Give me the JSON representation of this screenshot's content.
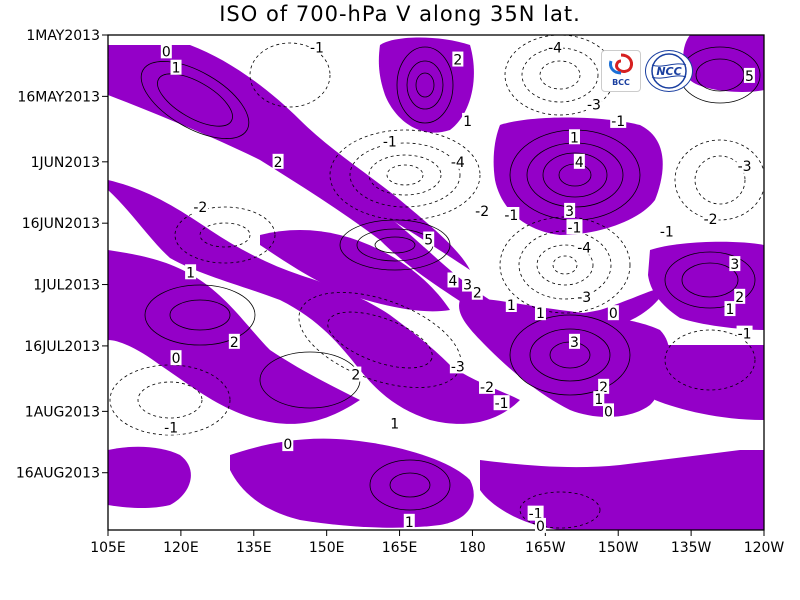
{
  "title": "ISO of 700-hPa V along 35N lat.",
  "colors": {
    "positive_fill": "#9400c8",
    "background": "#ffffff",
    "contour": "#000000"
  },
  "logos": [
    {
      "name": "bcc-logo",
      "text": "BCC"
    },
    {
      "name": "ncc-logo",
      "text": "NCC"
    }
  ],
  "chart_data": {
    "type": "heatmap",
    "title": "ISO of 700-hPa V along 35N lat.",
    "xlabel": "",
    "ylabel": "",
    "x_ticks": [
      "105E",
      "120E",
      "135E",
      "150E",
      "165E",
      "180",
      "165W",
      "150W",
      "135W",
      "120W"
    ],
    "y_ticks": [
      "1MAY2013",
      "16MAY2013",
      "1JUN2013",
      "16JUN2013",
      "1JUL2013",
      "16JUL2013",
      "1AUG2013",
      "16AUG2013"
    ],
    "xlim": [
      "105E",
      "120W"
    ],
    "ylim": [
      "1MAY2013",
      "30AUG2013"
    ],
    "shading": "positive values (V > 0) shaded purple",
    "contour_interval": 1,
    "contour_labels": [
      {
        "text": "0",
        "lon": 117,
        "date": "2013-05-05"
      },
      {
        "text": "1",
        "lon": 119,
        "date": "2013-05-09"
      },
      {
        "text": "-1",
        "lon": 148,
        "date": "2013-05-04"
      },
      {
        "text": "2",
        "lon": 177,
        "date": "2013-05-07"
      },
      {
        "text": "-4",
        "lon": 197,
        "date": "2013-05-04"
      },
      {
        "text": "5",
        "lon": 237,
        "date": "2013-05-11"
      },
      {
        "text": "1",
        "lon": 179,
        "date": "2013-05-22"
      },
      {
        "text": "-3",
        "lon": 205,
        "date": "2013-05-18"
      },
      {
        "text": "-1",
        "lon": 210,
        "date": "2013-05-22"
      },
      {
        "text": "1",
        "lon": 201,
        "date": "2013-05-26"
      },
      {
        "text": "-1",
        "lon": 163,
        "date": "2013-05-27"
      },
      {
        "text": "2",
        "lon": 140,
        "date": "2013-06-01"
      },
      {
        "text": "-4",
        "lon": 177,
        "date": "2013-06-01"
      },
      {
        "text": "4",
        "lon": 202,
        "date": "2013-06-01"
      },
      {
        "text": "-3",
        "lon": 236,
        "date": "2013-06-02"
      },
      {
        "text": "-2",
        "lon": 124,
        "date": "2013-06-12"
      },
      {
        "text": "-2",
        "lon": 182,
        "date": "2013-06-13"
      },
      {
        "text": "-1",
        "lon": 188,
        "date": "2013-06-14"
      },
      {
        "text": "3",
        "lon": 200,
        "date": "2013-06-13"
      },
      {
        "text": "-1",
        "lon": 201,
        "date": "2013-06-17"
      },
      {
        "text": "-2",
        "lon": 229,
        "date": "2013-06-15"
      },
      {
        "text": "-1",
        "lon": 220,
        "date": "2013-06-18"
      },
      {
        "text": "5",
        "lon": 171,
        "date": "2013-06-20"
      },
      {
        "text": "-4",
        "lon": 203,
        "date": "2013-06-22"
      },
      {
        "text": "1",
        "lon": 122,
        "date": "2013-06-28"
      },
      {
        "text": "3",
        "lon": 234,
        "date": "2013-06-26"
      },
      {
        "text": "4",
        "lon": 176,
        "date": "2013-06-30"
      },
      {
        "text": "3",
        "lon": 179,
        "date": "2013-07-01"
      },
      {
        "text": "2",
        "lon": 181,
        "date": "2013-07-03"
      },
      {
        "text": "-3",
        "lon": 203,
        "date": "2013-07-04"
      },
      {
        "text": "2",
        "lon": 235,
        "date": "2013-07-04"
      },
      {
        "text": "1",
        "lon": 188,
        "date": "2013-07-06"
      },
      {
        "text": "1",
        "lon": 194,
        "date": "2013-07-08"
      },
      {
        "text": "0",
        "lon": 209,
        "date": "2013-07-08"
      },
      {
        "text": "1",
        "lon": 233,
        "date": "2013-07-07"
      },
      {
        "text": "2",
        "lon": 131,
        "date": "2013-07-15"
      },
      {
        "text": "-1",
        "lon": 236,
        "date": "2013-07-13"
      },
      {
        "text": "3",
        "lon": 201,
        "date": "2013-07-15"
      },
      {
        "text": "0",
        "lon": 119,
        "date": "2013-07-19"
      },
      {
        "text": "-3",
        "lon": 177,
        "date": "2013-07-21"
      },
      {
        "text": "2",
        "lon": 156,
        "date": "2013-07-23"
      },
      {
        "text": "-2",
        "lon": 183,
        "date": "2013-07-26"
      },
      {
        "text": "2",
        "lon": 207,
        "date": "2013-07-26"
      },
      {
        "text": "1",
        "lon": 206,
        "date": "2013-07-29"
      },
      {
        "text": "-1",
        "lon": 186,
        "date": "2013-07-30"
      },
      {
        "text": "0",
        "lon": 208,
        "date": "2013-08-01"
      },
      {
        "text": "-1",
        "lon": 118,
        "date": "2013-08-05"
      },
      {
        "text": "1",
        "lon": 164,
        "date": "2013-08-04"
      },
      {
        "text": "0",
        "lon": 142,
        "date": "2013-08-09"
      },
      {
        "text": "-1",
        "lon": 193,
        "date": "2013-08-26"
      },
      {
        "text": "1",
        "lon": 167,
        "date": "2013-08-28"
      },
      {
        "text": "0",
        "lon": 194,
        "date": "2013-08-29"
      }
    ]
  }
}
